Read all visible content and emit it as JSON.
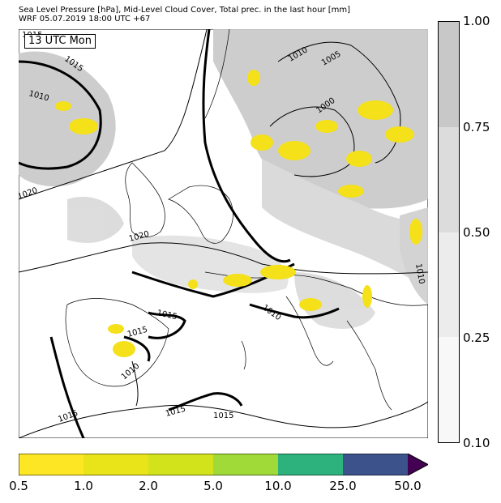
{
  "title": {
    "line1": "Sea Level Pressure [hPa], Mid-Level Cloud Cover, Total prec. in the last hour [mm]",
    "line2": "WRF 05.07.2019 18:00 UTC +67"
  },
  "map": {
    "time_label": "13 UTC Mon",
    "pressure_labels": [
      "1015",
      "1015",
      "1010",
      "1020",
      "1010",
      "1005",
      "1000",
      "1020",
      "1015",
      "1015",
      "1010",
      "1010",
      "1015",
      "1015",
      "1015",
      "1010"
    ],
    "colors": {
      "land_cloud": "#c8c8c8",
      "light_cloud": "#e6e6e6",
      "precip": "#f4e11a",
      "isobar": "#000000"
    }
  },
  "cloud_colorbar": {
    "ticks": [
      "1.00",
      "0.75",
      "0.50",
      "0.25",
      "0.10"
    ],
    "colors": [
      "#c8c8c8",
      "#dcdcdc",
      "#ececec",
      "#f8f8f8"
    ]
  },
  "precip_colorbar": {
    "ticks": [
      "0.5",
      "1.0",
      "2.0",
      "5.0",
      "10.0",
      "25.0",
      "50.0"
    ],
    "colors": [
      "#fde725",
      "#e8e419",
      "#d2e21b",
      "#a0da39",
      "#4ac16d",
      "#2db27d",
      "#3b528b",
      "#440154"
    ]
  }
}
